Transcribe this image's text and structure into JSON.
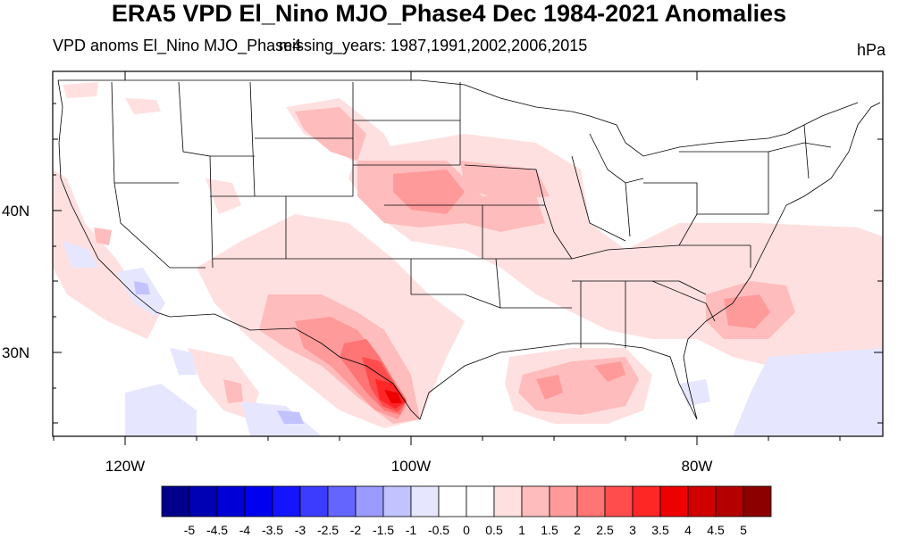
{
  "title": "ERA5 VPD El_Nino MJO_Phase4 Dec 1984-2021 Anomalies",
  "subtitle_left": "VPD anoms El_Nino MJO_Phase4",
  "subtitle_center": "missing_years: 1987,1991,2002,2006,2015",
  "units": "hPa",
  "lat_labels": [
    "40N",
    "30N"
  ],
  "lon_labels": [
    "120W",
    "100W",
    "80W"
  ],
  "colorbar": {
    "labels": [
      "-5",
      "-4.5",
      "-4",
      "-3.5",
      "-3",
      "-2.5",
      "-2",
      "-1.5",
      "-1",
      "-0.5",
      "0",
      "0.5",
      "1",
      "1.5",
      "2",
      "2.5",
      "3",
      "3.5",
      "4",
      "4.5",
      "5"
    ],
    "colors": [
      "#00008a",
      "#0000b4",
      "#0000d6",
      "#0000f0",
      "#1414ff",
      "#3c3cff",
      "#6464ff",
      "#9a9aff",
      "#c2c2ff",
      "#e6e6ff",
      "#ffffff",
      "#ffffff",
      "#ffe0e0",
      "#ffbcbc",
      "#ff9a9a",
      "#ff7474",
      "#ff4c4c",
      "#ff2626",
      "#ee0000",
      "#d00000",
      "#b40000",
      "#8c0000"
    ]
  }
}
